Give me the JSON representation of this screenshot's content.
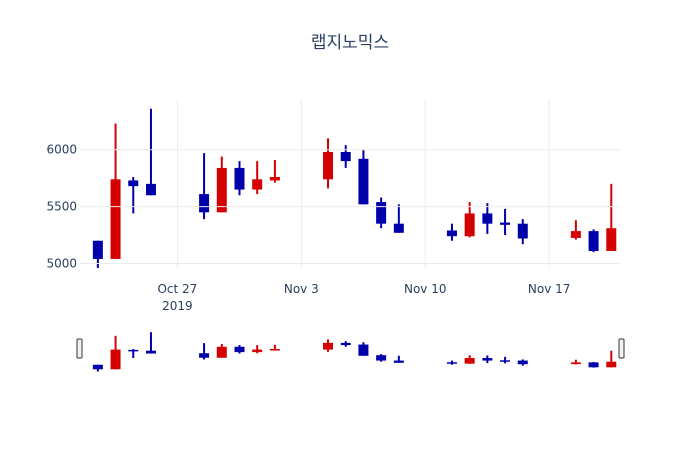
{
  "chart_data": {
    "type": "candlestick",
    "title": "랩지노믹스",
    "xlabel": "",
    "ylabel": "",
    "ylim": [
      4943,
      6437
    ],
    "grid": true,
    "legend": null,
    "yticks": [
      5000,
      5500,
      6000
    ],
    "xticks": [
      {
        "date": "2019-10-27",
        "label": "Oct 27",
        "sublabel": "2019"
      },
      {
        "date": "2019-11-03",
        "label": "Nov 3",
        "sublabel": ""
      },
      {
        "date": "2019-11-10",
        "label": "Nov 10",
        "sublabel": ""
      },
      {
        "date": "2019-11-17",
        "label": "Nov 17",
        "sublabel": ""
      }
    ],
    "colors": {
      "increasing": "#d50000",
      "decreasing": "#0000aa"
    },
    "x": [
      "2019-10-22",
      "2019-10-23",
      "2019-10-24",
      "2019-10-25",
      "2019-10-28",
      "2019-10-29",
      "2019-10-30",
      "2019-10-31",
      "2019-11-01",
      "2019-11-04",
      "2019-11-05",
      "2019-11-06",
      "2019-11-07",
      "2019-11-08",
      "2019-11-11",
      "2019-11-12",
      "2019-11-13",
      "2019-11-14",
      "2019-11-15",
      "2019-11-18",
      "2019-11-19",
      "2019-11-20"
    ],
    "open": [
      5200,
      5040,
      5730,
      5700,
      5610,
      5450,
      5840,
      5650,
      5730,
      5740,
      5980,
      5920,
      5540,
      5350,
      5290,
      5240,
      5440,
      5360,
      5350,
      5225,
      5285,
      5110
    ],
    "high": [
      5200,
      6230,
      5760,
      6360,
      5970,
      5940,
      5900,
      5900,
      5910,
      6100,
      6040,
      6000,
      5580,
      5520,
      5350,
      5540,
      5530,
      5480,
      5390,
      5380,
      5300,
      5700
    ],
    "low": [
      4960,
      5040,
      5440,
      5600,
      5390,
      5450,
      5600,
      5610,
      5710,
      5660,
      5840,
      5520,
      5310,
      5270,
      5200,
      5230,
      5260,
      5250,
      5170,
      5210,
      5100,
      5110
    ],
    "close": [
      5040,
      5740,
      5680,
      5600,
      5450,
      5840,
      5650,
      5740,
      5760,
      5980,
      5900,
      5520,
      5350,
      5270,
      5240,
      5440,
      5350,
      5340,
      5220,
      5285,
      5110,
      5310
    ],
    "rangeslider": {
      "visible": true
    }
  }
}
